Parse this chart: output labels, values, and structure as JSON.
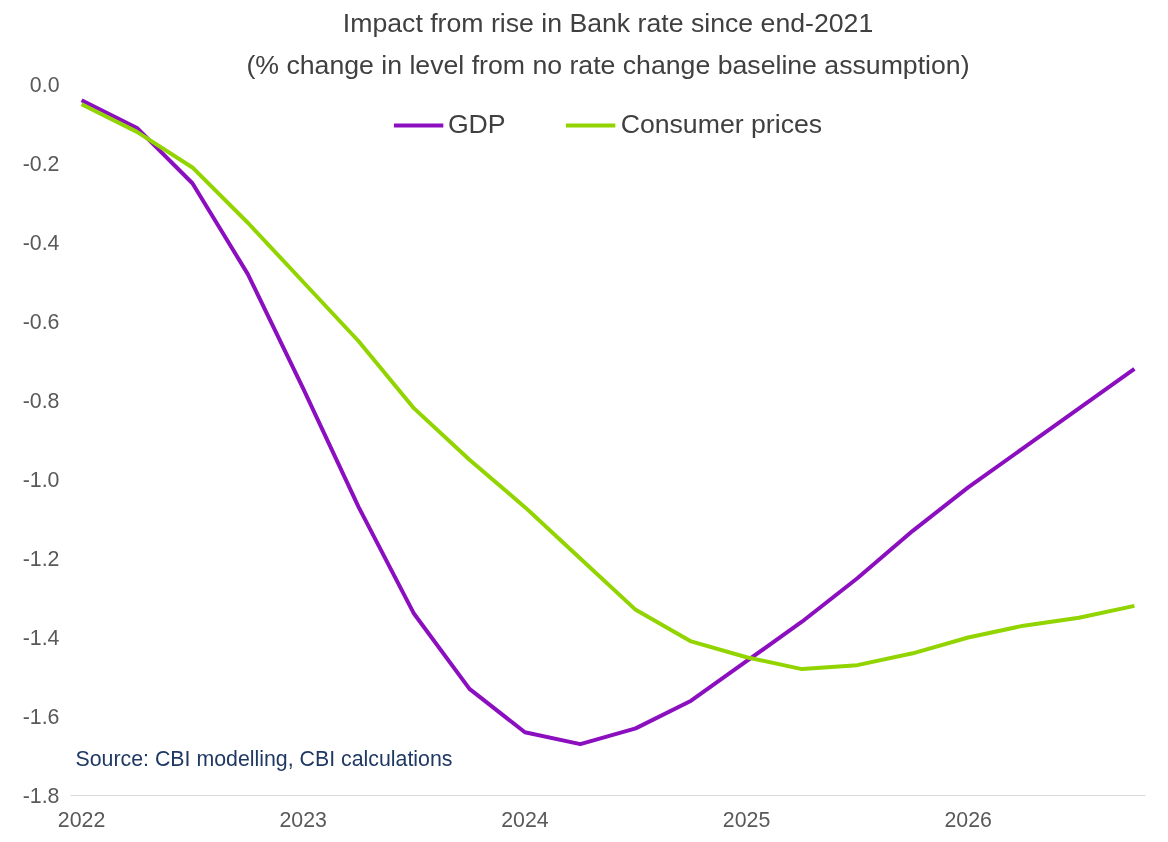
{
  "chart_data": {
    "type": "line",
    "title": "Impact from rise in Bank rate since end-2021",
    "subtitle": "(% change in level from no rate change baseline assumption)",
    "x": [
      2022.0,
      2022.25,
      2022.5,
      2022.75,
      2023.0,
      2023.25,
      2023.5,
      2023.75,
      2024.0,
      2024.25,
      2024.5,
      2024.75,
      2025.0,
      2025.25,
      2025.5,
      2025.75,
      2026.0,
      2026.25,
      2026.5,
      2026.75
    ],
    "series": [
      {
        "name": "GDP",
        "color": "#8b0fbf",
        "values": [
          -0.04,
          -0.11,
          -0.25,
          -0.48,
          -0.77,
          -1.07,
          -1.34,
          -1.53,
          -1.64,
          -1.67,
          -1.63,
          -1.56,
          -1.46,
          -1.36,
          -1.25,
          -1.13,
          -1.02,
          -0.92,
          -0.82,
          -0.72
        ]
      },
      {
        "name": "Consumer prices",
        "color": "#92d400",
        "values": [
          -0.05,
          -0.12,
          -0.21,
          -0.35,
          -0.5,
          -0.65,
          -0.82,
          -0.95,
          -1.07,
          -1.2,
          -1.33,
          -1.41,
          -1.45,
          -1.48,
          -1.47,
          -1.44,
          -1.4,
          -1.37,
          -1.35,
          -1.32
        ]
      }
    ],
    "xlim": [
      2021.95,
      2026.8
    ],
    "xticks": [
      2022,
      2023,
      2024,
      2025,
      2026
    ],
    "ylim": [
      -1.8,
      0
    ],
    "yticks": [
      {
        "value": 0,
        "label": "0.0"
      },
      {
        "value": -0.2,
        "label": "-0.2"
      },
      {
        "value": -0.4,
        "label": "-0.4"
      },
      {
        "value": -0.6,
        "label": "-0.6"
      },
      {
        "value": -0.8,
        "label": "-0.8"
      },
      {
        "value": -1.0,
        "label": "-1.0"
      },
      {
        "value": -1.2,
        "label": "-1.2"
      },
      {
        "value": -1.4,
        "label": "-1.4"
      },
      {
        "value": -1.6,
        "label": "-1.6"
      },
      {
        "value": -1.8,
        "label": "-1.8"
      }
    ],
    "legend": "top",
    "grid": false,
    "marker": "none",
    "line_style": "solid",
    "annotations": [
      "Source: CBI modelling, CBI calculations"
    ]
  }
}
